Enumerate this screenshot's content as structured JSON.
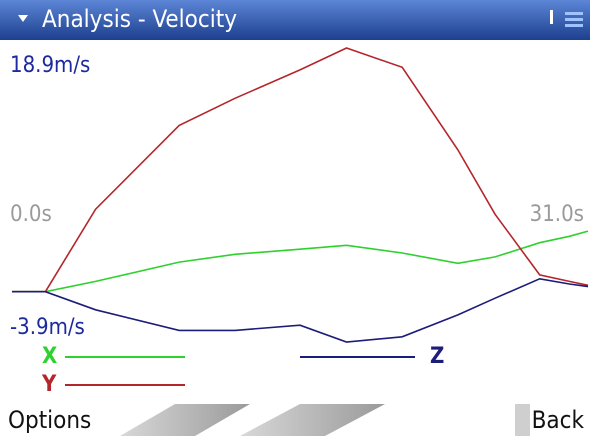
{
  "header": {
    "title": "Analysis - Velocity"
  },
  "chart_data": {
    "type": "line",
    "x": [
      0,
      1.8,
      4.5,
      9,
      12,
      15.5,
      18,
      21,
      24,
      26,
      28.4,
      30,
      31
    ],
    "series": [
      {
        "name": "X",
        "color": "#2ed12e",
        "values": [
          0,
          0,
          0.8,
          2.3,
          2.9,
          3.3,
          3.6,
          3.0,
          2.2,
          2.7,
          3.8,
          4.3,
          4.7
        ]
      },
      {
        "name": "Y",
        "color": "#b3262b",
        "values": [
          0,
          0,
          6.4,
          12.9,
          15,
          17.2,
          18.9,
          17.4,
          11,
          6,
          1.3,
          0.8,
          0.5
        ]
      },
      {
        "name": "Z",
        "color": "#1c1c7a",
        "values": [
          0,
          0,
          -1.4,
          -3.0,
          -3.0,
          -2.6,
          -3.9,
          -3.5,
          -1.8,
          -0.5,
          1.0,
          0.6,
          0.4
        ]
      }
    ],
    "xlim": [
      0,
      31
    ],
    "xticks": [
      {
        "value": 0,
        "label": "0.0s"
      },
      {
        "value": 31,
        "label": "31.0s"
      }
    ],
    "ylim": [
      -3.9,
      18.9
    ],
    "yticks": [
      {
        "value": 18.9,
        "label": "18.9m/s"
      },
      {
        "value": -3.9,
        "label": "-3.9m/s"
      }
    ]
  },
  "softkeys": {
    "left": "Options",
    "right": "Back"
  }
}
